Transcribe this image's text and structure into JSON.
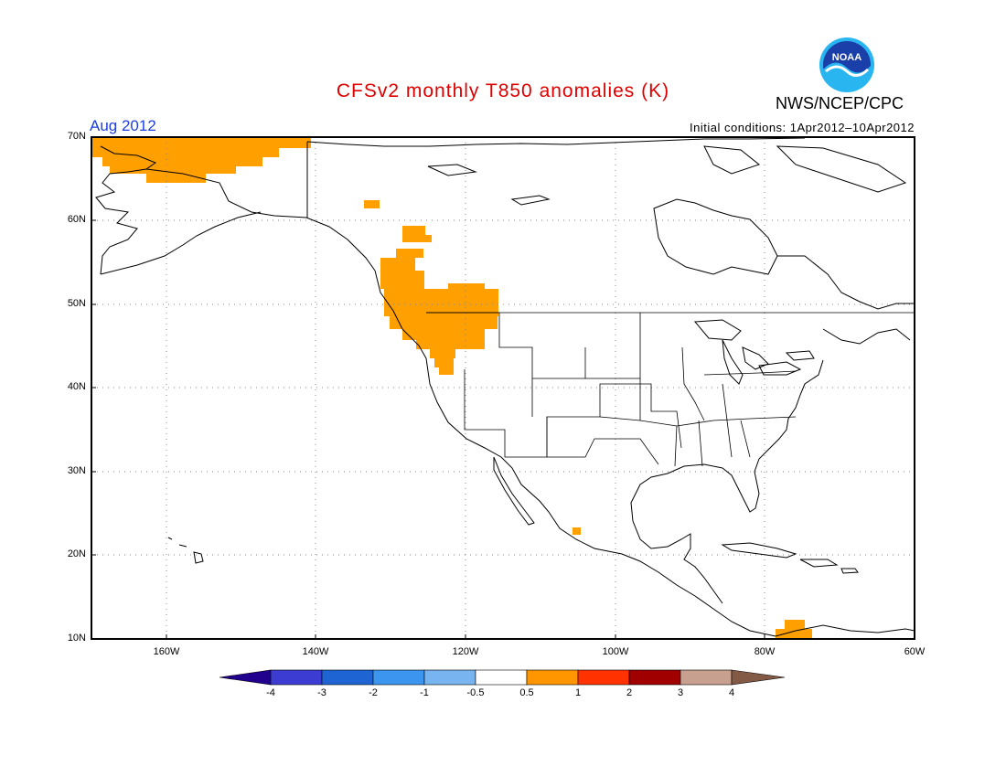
{
  "title": "CFSv2 monthly T850 anomalies (K)",
  "month": "Aug 2012",
  "agency": "NWS/NCEP/CPC",
  "logo_text": "NOAA",
  "initial_conditions": "Initial conditions: 1Apr2012–10Apr2012",
  "map": {
    "lat_range": [
      10,
      70
    ],
    "lon_range": [
      -170,
      -60
    ],
    "lat_labels": [
      "70N",
      "60N",
      "50N",
      "40N",
      "30N",
      "20N",
      "10N"
    ],
    "lon_labels": [
      "160W",
      "140W",
      "120W",
      "100W",
      "80W",
      "60W"
    ],
    "anomaly_regions": [
      {
        "name": "alaska-north",
        "level": "0.5 to 1"
      },
      {
        "name": "pacific-northwest",
        "level": "0.5 to 1"
      },
      {
        "name": "west-mexico",
        "level": "0.5 to 1"
      },
      {
        "name": "northern-south-america",
        "level": "0.5 to 1"
      }
    ]
  },
  "colorbar": {
    "labels": [
      "-4",
      "-3",
      "-2",
      "-1",
      "-0.5",
      "0.5",
      "1",
      "2",
      "3",
      "4"
    ],
    "colors": [
      "#20008c",
      "#3c3cd2",
      "#1e64d2",
      "#3c96f0",
      "#78b4f0",
      "#ffffff",
      "#ff9600",
      "#ff3200",
      "#a00000",
      "#c8a090",
      "#825a46"
    ]
  }
}
